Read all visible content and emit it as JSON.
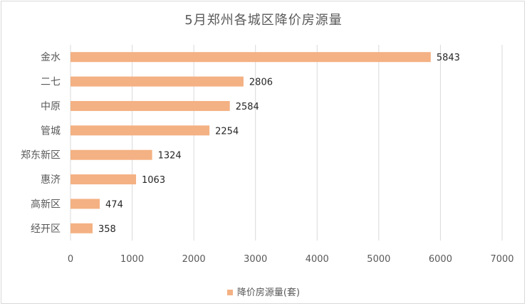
{
  "chart_data": {
    "type": "bar",
    "orientation": "horizontal",
    "title": "5月郑州各城区降价房源量",
    "categories": [
      "金水",
      "二七",
      "中原",
      "管城",
      "郑东新区",
      "惠济",
      "高新区",
      "经开区"
    ],
    "series": [
      {
        "name": "降价房源量(套)",
        "values": [
          5843,
          2806,
          2584,
          2254,
          1324,
          1063,
          474,
          358
        ]
      }
    ],
    "xlim": [
      0,
      7000
    ],
    "xticks": [
      0,
      1000,
      2000,
      3000,
      4000,
      5000,
      6000,
      7000
    ],
    "grid": true,
    "legend_position": "bottom",
    "colors": {
      "bar": "#f4b183",
      "grid": "#d9d9d9",
      "text": "#595959",
      "label": "#262626"
    }
  }
}
